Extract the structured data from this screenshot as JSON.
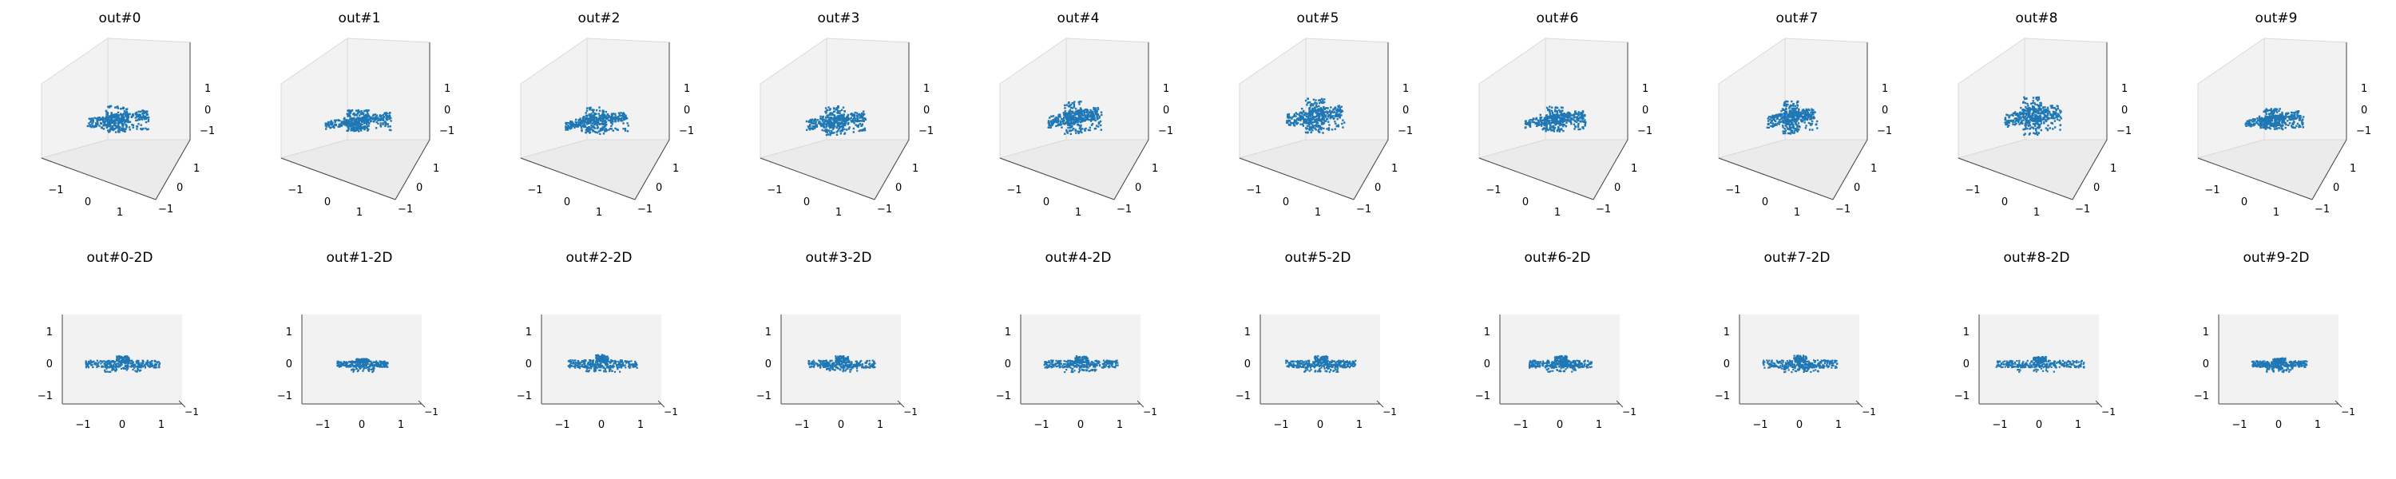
{
  "chart_data": {
    "type": "scatter",
    "series_color": "#1f77b4",
    "pane_color": "#f2f2f2",
    "grid": false,
    "panels_3d": [
      {
        "title": "out#0",
        "ticks": {
          "x": [
            "−1",
            "0",
            "1"
          ],
          "y": [
            "−1",
            "0",
            "1"
          ],
          "z": [
            "−1",
            "0",
            "1"
          ]
        },
        "xlim": [
          -1.6,
          1.6
        ],
        "ylim": [
          -1.6,
          1.6
        ],
        "zlim": [
          -1.6,
          1.6
        ],
        "shape": [
          0.0,
          0.0,
          0.55,
          0.28
        ]
      },
      {
        "title": "out#1",
        "ticks": {
          "x": [
            "−1",
            "0",
            "1"
          ],
          "y": [
            "−1",
            "0",
            "1"
          ],
          "z": [
            "−1",
            "0",
            "1"
          ]
        },
        "xlim": [
          -1.6,
          1.6
        ],
        "ylim": [
          -1.6,
          1.6
        ],
        "zlim": [
          -1.6,
          1.6
        ],
        "shape": [
          0.05,
          -0.05,
          0.58,
          0.22
        ]
      },
      {
        "title": "out#2",
        "ticks": {
          "x": [
            "−1",
            "0",
            "1"
          ],
          "y": [
            "−1",
            "0",
            "1"
          ],
          "z": [
            "−1",
            "0",
            "1"
          ]
        },
        "xlim": [
          -1.6,
          1.6
        ],
        "ylim": [
          -1.6,
          1.6
        ],
        "zlim": [
          -1.6,
          1.6
        ],
        "shape": [
          0.0,
          -0.05,
          0.55,
          0.28
        ]
      },
      {
        "title": "out#3",
        "ticks": {
          "x": [
            "−1",
            "0",
            "1"
          ],
          "y": [
            "−1",
            "0",
            "1"
          ],
          "z": [
            "−1",
            "0",
            "1"
          ]
        },
        "xlim": [
          -1.6,
          1.6
        ],
        "ylim": [
          -1.6,
          1.6
        ],
        "zlim": [
          -1.6,
          1.6
        ],
        "shape": [
          0.0,
          -0.05,
          0.52,
          0.3
        ]
      },
      {
        "title": "out#4",
        "ticks": {
          "x": [
            "−1",
            "0",
            "1"
          ],
          "y": [
            "−1",
            "0",
            "1"
          ],
          "z": [
            "−1",
            "0",
            "1"
          ]
        },
        "xlim": [
          -1.6,
          1.6
        ],
        "ylim": [
          -1.6,
          1.6
        ],
        "zlim": [
          -1.6,
          1.6
        ],
        "shape": [
          -0.05,
          0.05,
          0.45,
          0.35
        ]
      },
      {
        "title": "out#5",
        "ticks": {
          "x": [
            "−1",
            "0",
            "1"
          ],
          "y": [
            "−1",
            "0",
            "1"
          ],
          "z": [
            "−1",
            "0",
            "1"
          ]
        },
        "xlim": [
          -1.6,
          1.6
        ],
        "ylim": [
          -1.6,
          1.6
        ],
        "zlim": [
          -1.6,
          1.6
        ],
        "shape": [
          0.0,
          0.1,
          0.5,
          0.38
        ]
      },
      {
        "title": "out#6",
        "ticks": {
          "x": [
            "−1",
            "0",
            "1"
          ],
          "y": [
            "−1",
            "0",
            "1"
          ],
          "z": [
            "−1",
            "0",
            "1"
          ]
        },
        "xlim": [
          -1.6,
          1.6
        ],
        "ylim": [
          -1.6,
          1.6
        ],
        "zlim": [
          -1.6,
          1.6
        ],
        "shape": [
          0.0,
          0.0,
          0.52,
          0.26
        ]
      },
      {
        "title": "out#7",
        "ticks": {
          "x": [
            "−1",
            "0",
            "1"
          ],
          "y": [
            "−1",
            "0",
            "1"
          ],
          "z": [
            "−1",
            "0",
            "1"
          ]
        },
        "xlim": [
          -1.6,
          1.6
        ],
        "ylim": [
          -1.6,
          1.6
        ],
        "zlim": [
          -1.6,
          1.6
        ],
        "shape": [
          -0.1,
          0.05,
          0.42,
          0.34
        ]
      },
      {
        "title": "out#8",
        "ticks": {
          "x": [
            "−1",
            "0",
            "1"
          ],
          "y": [
            "−1",
            "0",
            "1"
          ],
          "z": [
            "−1",
            "0",
            "1"
          ]
        },
        "xlim": [
          -1.6,
          1.6
        ],
        "ylim": [
          -1.6,
          1.6
        ],
        "zlim": [
          -1.6,
          1.6
        ],
        "shape": [
          -0.05,
          0.1,
          0.48,
          0.4
        ]
      },
      {
        "title": "out#9",
        "ticks": {
          "x": [
            "−1",
            "0",
            "1"
          ],
          "y": [
            "−1",
            "0",
            "1"
          ],
          "z": [
            "−1",
            "0",
            "1"
          ]
        },
        "xlim": [
          -1.6,
          1.6
        ],
        "ylim": [
          -1.6,
          1.6
        ],
        "zlim": [
          -1.6,
          1.6
        ],
        "shape": [
          0.0,
          0.0,
          0.5,
          0.22
        ]
      }
    ],
    "panels_2d": [
      {
        "title": "out#0-2D",
        "ticks": {
          "x": [
            "−1",
            "0",
            "1"
          ],
          "y": [
            "−1",
            "0",
            "1"
          ],
          "corner": [
            "−1",
            "1"
          ]
        },
        "xlim": [
          -1.6,
          1.6
        ],
        "ylim": [
          -1.6,
          1.6
        ],
        "shape": [
          0.95,
          0.45
        ]
      },
      {
        "title": "out#1-2D",
        "ticks": {
          "x": [
            "−1",
            "0",
            "1"
          ],
          "y": [
            "−1",
            "0",
            "1"
          ],
          "corner": [
            "−1",
            "1"
          ]
        },
        "xlim": [
          -1.6,
          1.6
        ],
        "ylim": [
          -1.6,
          1.6
        ],
        "shape": [
          0.65,
          0.25
        ]
      },
      {
        "title": "out#2-2D",
        "ticks": {
          "x": [
            "−1",
            "0",
            "1"
          ],
          "y": [
            "−1",
            "0",
            "1"
          ],
          "corner": [
            "−1",
            "1"
          ]
        },
        "xlim": [
          -1.6,
          1.6
        ],
        "ylim": [
          -1.6,
          1.6
        ],
        "shape": [
          0.9,
          0.55
        ]
      },
      {
        "title": "out#3-2D",
        "ticks": {
          "x": [
            "−1",
            "0",
            "1"
          ],
          "y": [
            "−1",
            "0",
            "1"
          ],
          "corner": [
            "−1",
            "1"
          ]
        },
        "xlim": [
          -1.6,
          1.6
        ],
        "ylim": [
          -1.6,
          1.6
        ],
        "shape": [
          0.85,
          0.45
        ]
      },
      {
        "title": "out#4-2D",
        "ticks": {
          "x": [
            "−1",
            "0",
            "1"
          ],
          "y": [
            "−1",
            "0",
            "1"
          ],
          "corner": [
            "−1",
            "1"
          ]
        },
        "xlim": [
          -1.6,
          1.6
        ],
        "ylim": [
          -1.6,
          1.6
        ],
        "shape": [
          0.95,
          0.45
        ]
      },
      {
        "title": "out#5-2D",
        "ticks": {
          "x": [
            "−1",
            "0",
            "1"
          ],
          "y": [
            "−1",
            "0",
            "1"
          ],
          "corner": [
            "−1",
            "1"
          ]
        },
        "xlim": [
          -1.6,
          1.6
        ],
        "ylim": [
          -1.6,
          1.6
        ],
        "shape": [
          0.9,
          0.45
        ]
      },
      {
        "title": "out#6-2D",
        "ticks": {
          "x": [
            "−1",
            "0",
            "1"
          ],
          "y": [
            "−1",
            "0",
            "1"
          ],
          "corner": [
            "−1",
            "1"
          ]
        },
        "xlim": [
          -1.6,
          1.6
        ],
        "ylim": [
          -1.6,
          1.6
        ],
        "shape": [
          0.8,
          0.45
        ]
      },
      {
        "title": "out#7-2D",
        "ticks": {
          "x": [
            "−1",
            "0",
            "1"
          ],
          "y": [
            "−1",
            "0",
            "1"
          ],
          "corner": [
            "−1",
            "1"
          ]
        },
        "xlim": [
          -1.6,
          1.6
        ],
        "ylim": [
          -1.6,
          1.6
        ],
        "shape": [
          0.95,
          0.5
        ]
      },
      {
        "title": "out#8-2D",
        "ticks": {
          "x": [
            "−1",
            "0",
            "1"
          ],
          "y": [
            "−1",
            "0",
            "1"
          ],
          "corner": [
            "−1",
            "1"
          ]
        },
        "xlim": [
          -1.6,
          1.6
        ],
        "ylim": [
          -1.6,
          1.6
        ],
        "shape": [
          1.15,
          0.4
        ]
      },
      {
        "title": "out#9-2D",
        "ticks": {
          "x": [
            "−1",
            "0",
            "1"
          ],
          "y": [
            "−1",
            "0",
            "1"
          ],
          "corner": [
            "−1",
            "1"
          ]
        },
        "xlim": [
          -1.6,
          1.6
        ],
        "ylim": [
          -1.6,
          1.6
        ],
        "shape": [
          0.7,
          0.3
        ]
      }
    ]
  }
}
